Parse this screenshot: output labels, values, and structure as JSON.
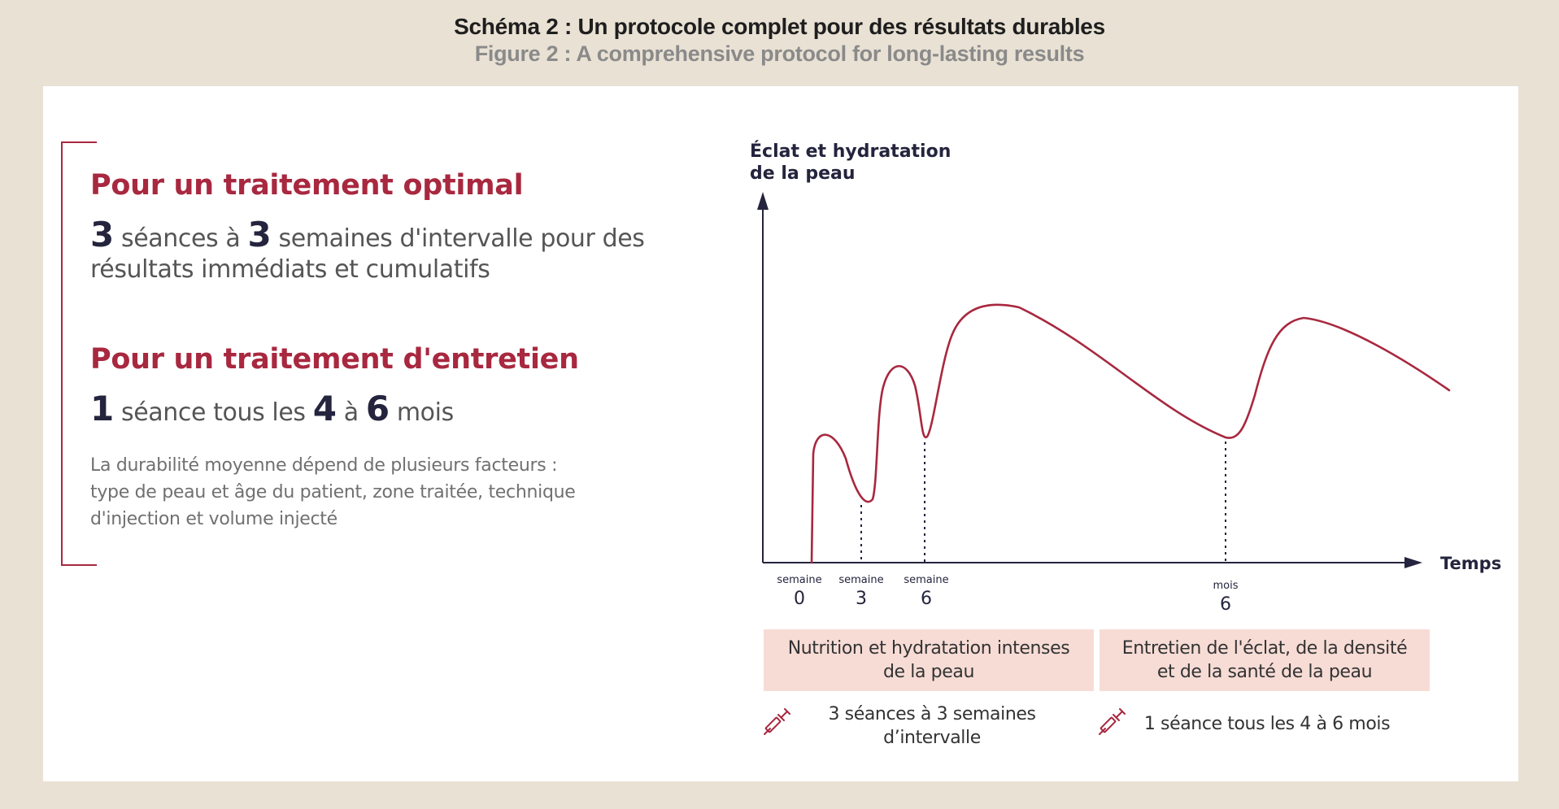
{
  "header": {
    "title_fr": "Schéma 2 : Un protocole complet pour des résultats durables",
    "title_en": "Figure 2 : A comprehensive protocol for long-lasting results"
  },
  "left": {
    "optimal_heading": "Pour un traitement optimal",
    "optimal_n1": "3",
    "optimal_t1": " séances à ",
    "optimal_n2": "3",
    "optimal_t2": " semaines d'intervalle pour des",
    "optimal_line2": "résultats immédiats et cumulatifs",
    "maint_heading": "Pour un traitement d'entretien",
    "maint_n1": "1",
    "maint_t1": " séance tous les ",
    "maint_n2": "4",
    "maint_t2": " à ",
    "maint_n3": "6",
    "maint_t3": " mois",
    "note_line1": "La durabilité moyenne dépend de plusieurs facteurs :",
    "note_line2": "type de peau et âge du patient, zone traitée, technique",
    "note_line3": "d'injection et volume injecté"
  },
  "chart": {
    "ylabel_line1": "Éclat et hydratation",
    "ylabel_line2": "de la peau",
    "xlabel": "Temps",
    "ticks": [
      {
        "unit": "semaine",
        "value": "0"
      },
      {
        "unit": "semaine",
        "value": "3"
      },
      {
        "unit": "semaine",
        "value": "6"
      },
      {
        "unit": "mois",
        "value": "6"
      }
    ]
  },
  "phases": {
    "phase1_line1": "Nutrition et hydratation intenses",
    "phase1_line2": "de la peau",
    "phase2_line1": "Entretien de l'éclat, de la densité",
    "phase2_line2": "et de la santé de la peau",
    "sessions1_line1": "3 séances à 3 semaines",
    "sessions1_line2": "d’intervalle",
    "sessions2": "1 séance tous les 4 à 6 mois"
  },
  "colors": {
    "accent": "#a8283f",
    "navy": "#24243e",
    "phase_bg": "#f7dcd6",
    "page_bg": "#e9e1d4"
  },
  "icons": [
    "syringe-icon",
    "syringe-icon"
  ]
}
